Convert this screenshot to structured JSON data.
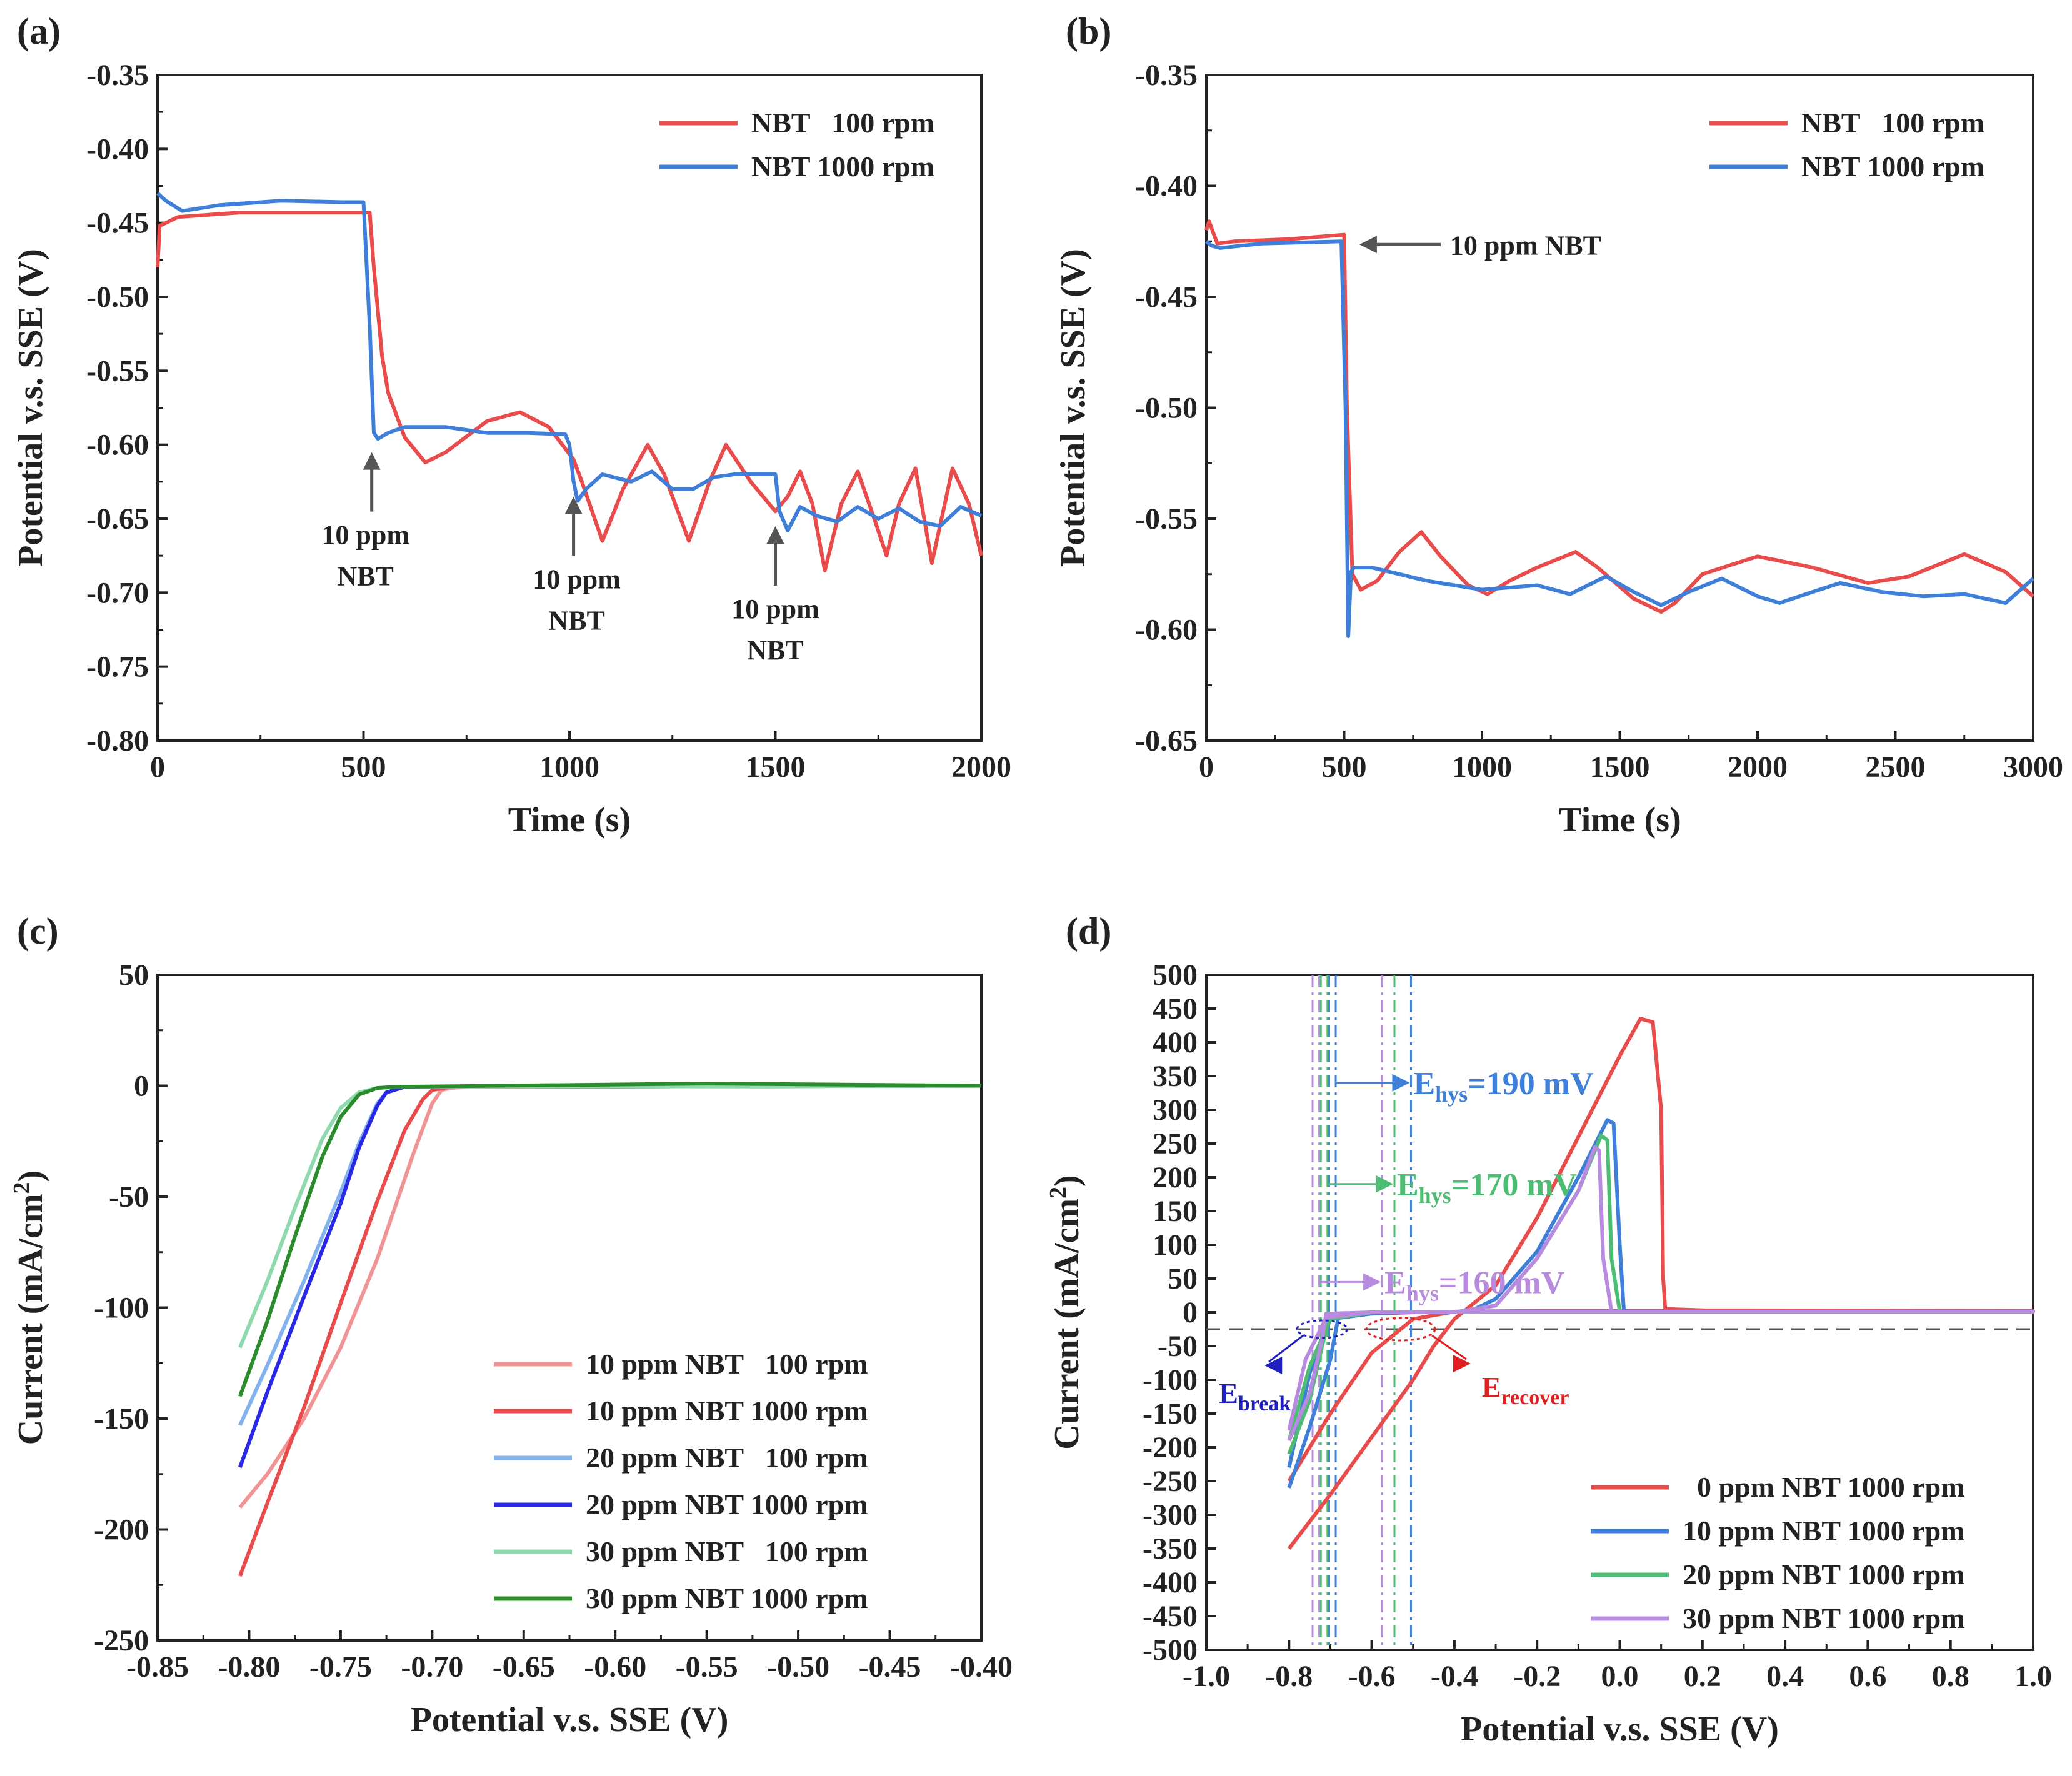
{
  "colors": {
    "red": "#ea4b4b",
    "blue": "#3e7fd9",
    "lightred": "#f29494",
    "darkblue": "#2828e6",
    "lightblue": "#83b3ee",
    "lightgreen": "#8fd9ae",
    "darkgreen": "#2a8c2a",
    "green": "#4dbd73",
    "purple": "#b98be0",
    "gray": "#555555",
    "annred": "#e02020",
    "annblue": "#2020c0"
  },
  "chart_data": [
    {
      "panel": "(a)",
      "type": "line",
      "xlabel": "Time (s)",
      "ylabel": "Potential v.s. SSE (V)",
      "xlim": [
        0,
        2000
      ],
      "ylim": [
        -0.8,
        -0.35
      ],
      "xticks": [
        0,
        500,
        1000,
        1500,
        2000
      ],
      "xtick_labels": [
        "0",
        "500",
        "1000",
        "1500",
        "2000"
      ],
      "yticks": [
        -0.35,
        -0.4,
        -0.45,
        -0.5,
        -0.55,
        -0.6,
        -0.65,
        -0.7,
        -0.75,
        -0.8
      ],
      "ytick_labels": [
        "-0.35",
        "-0.40",
        "-0.45",
        "-0.50",
        "-0.55",
        "-0.60",
        "-0.65",
        "-0.70",
        "-0.75",
        "-0.80"
      ],
      "series": [
        {
          "name": "NBT   100 rpm",
          "color": "red",
          "x": [
            0,
            5,
            50,
            200,
            400,
            515,
            525,
            545,
            560,
            600,
            650,
            700,
            800,
            880,
            950,
            1010,
            1030,
            1080,
            1130,
            1190,
            1230,
            1290,
            1340,
            1380,
            1440,
            1500,
            1530,
            1560,
            1590,
            1620,
            1660,
            1700,
            1740,
            1770,
            1800,
            1840,
            1880,
            1930,
            1970,
            2000
          ],
          "y": [
            -0.48,
            -0.452,
            -0.446,
            -0.443,
            -0.443,
            -0.443,
            -0.48,
            -0.54,
            -0.565,
            -0.595,
            -0.612,
            -0.605,
            -0.584,
            -0.578,
            -0.588,
            -0.61,
            -0.625,
            -0.665,
            -0.63,
            -0.6,
            -0.62,
            -0.665,
            -0.625,
            -0.6,
            -0.625,
            -0.645,
            -0.635,
            -0.618,
            -0.64,
            -0.685,
            -0.64,
            -0.618,
            -0.65,
            -0.675,
            -0.64,
            -0.616,
            -0.68,
            -0.616,
            -0.64,
            -0.675
          ]
        },
        {
          "name": "NBT 1000 rpm",
          "color": "blue",
          "x": [
            0,
            20,
            60,
            150,
            300,
            450,
            500,
            515,
            525,
            535,
            560,
            600,
            700,
            800,
            900,
            990,
            1000,
            1010,
            1020,
            1040,
            1080,
            1150,
            1200,
            1250,
            1300,
            1350,
            1400,
            1450,
            1500,
            1510,
            1530,
            1560,
            1600,
            1650,
            1700,
            1750,
            1800,
            1850,
            1900,
            1950,
            2000
          ],
          "y": [
            -0.43,
            -0.435,
            -0.442,
            -0.438,
            -0.435,
            -0.436,
            -0.436,
            -0.52,
            -0.592,
            -0.596,
            -0.592,
            -0.588,
            -0.588,
            -0.592,
            -0.592,
            -0.593,
            -0.6,
            -0.625,
            -0.638,
            -0.63,
            -0.62,
            -0.625,
            -0.618,
            -0.63,
            -0.63,
            -0.622,
            -0.62,
            -0.62,
            -0.62,
            -0.645,
            -0.658,
            -0.642,
            -0.648,
            -0.652,
            -0.642,
            -0.65,
            -0.643,
            -0.652,
            -0.655,
            -0.642,
            -0.648
          ]
        }
      ],
      "legend": [
        "NBT   100 rpm",
        "NBT 1000 rpm"
      ],
      "annotations": [
        {
          "text1": "10 ppm",
          "text2": "NBT",
          "x": 520
        },
        {
          "text1": "10 ppm",
          "text2": "NBT",
          "x": 1010
        },
        {
          "text1": "10 ppm",
          "text2": "NBT",
          "x": 1500
        }
      ]
    },
    {
      "panel": "(b)",
      "type": "line",
      "xlabel": "Time (s)",
      "ylabel": "Potential v.s. SSE (V)",
      "xlim": [
        0,
        3000
      ],
      "ylim": [
        -0.65,
        -0.35
      ],
      "xticks": [
        0,
        500,
        1000,
        1500,
        2000,
        2500,
        3000
      ],
      "xtick_labels": [
        "0",
        "500",
        "1000",
        "1500",
        "2000",
        "2500",
        "3000"
      ],
      "yticks": [
        -0.35,
        -0.4,
        -0.45,
        -0.5,
        -0.55,
        -0.6,
        -0.65
      ],
      "ytick_labels": [
        "-0.35",
        "-0.40",
        "-0.45",
        "-0.50",
        "-0.55",
        "-0.60",
        "-0.65"
      ],
      "series": [
        {
          "name": "NBT   100 rpm",
          "color": "red",
          "x": [
            0,
            10,
            40,
            100,
            300,
            500,
            510,
            530,
            560,
            620,
            700,
            780,
            850,
            950,
            1020,
            1100,
            1200,
            1340,
            1420,
            1550,
            1650,
            1700,
            1800,
            2000,
            2200,
            2400,
            2550,
            2750,
            2900,
            3000
          ],
          "y": [
            -0.42,
            -0.416,
            -0.426,
            -0.425,
            -0.424,
            -0.422,
            -0.5,
            -0.575,
            -0.582,
            -0.578,
            -0.565,
            -0.556,
            -0.567,
            -0.58,
            -0.584,
            -0.578,
            -0.572,
            -0.565,
            -0.572,
            -0.586,
            -0.592,
            -0.588,
            -0.575,
            -0.567,
            -0.572,
            -0.579,
            -0.576,
            -0.566,
            -0.574,
            -0.585
          ]
        },
        {
          "name": "NBT 1000 rpm",
          "color": "blue",
          "x": [
            0,
            20,
            50,
            200,
            490,
            505,
            515,
            525,
            535,
            600,
            700,
            800,
            1000,
            1200,
            1320,
            1450,
            1550,
            1650,
            1750,
            1870,
            2000,
            2080,
            2200,
            2300,
            2450,
            2600,
            2750,
            2900,
            3000
          ],
          "y": [
            -0.425,
            -0.427,
            -0.428,
            -0.426,
            -0.425,
            -0.5,
            -0.603,
            -0.574,
            -0.572,
            -0.572,
            -0.575,
            -0.578,
            -0.582,
            -0.58,
            -0.584,
            -0.576,
            -0.583,
            -0.589,
            -0.583,
            -0.577,
            -0.585,
            -0.588,
            -0.583,
            -0.579,
            -0.583,
            -0.585,
            -0.584,
            -0.588,
            -0.577
          ]
        }
      ],
      "legend": [
        "NBT   100 rpm",
        "NBT 1000 rpm"
      ],
      "annotations": [
        {
          "text": "10 ppm NBT",
          "x": 510,
          "y": -0.425
        }
      ]
    },
    {
      "panel": "(c)",
      "type": "line",
      "xlabel": "Potential v.s. SSE (V)",
      "ylabel": "Current (mA/cm²)",
      "ylabel_main": "Current (mA/cm",
      "ylabel_sup": "2",
      "ylabel_end": ")",
      "xlim": [
        -0.85,
        -0.4
      ],
      "ylim": [
        -250,
        50
      ],
      "xticks": [
        -0.85,
        -0.8,
        -0.75,
        -0.7,
        -0.65,
        -0.6,
        -0.55,
        -0.5,
        -0.45,
        -0.4
      ],
      "xtick_labels": [
        "-0.85",
        "-0.80",
        "-0.75",
        "-0.70",
        "-0.65",
        "-0.60",
        "-0.55",
        "-0.50",
        "-0.45",
        "-0.40"
      ],
      "yticks": [
        50,
        0,
        -50,
        -100,
        -150,
        -200,
        -250
      ],
      "ytick_labels": [
        "50",
        "0",
        "-50",
        "-100",
        "-150",
        "-200",
        "-250"
      ],
      "series": [
        {
          "name": "10 ppm NBT   100 rpm",
          "color": "lightred",
          "x": [
            -0.805,
            -0.79,
            -0.77,
            -0.75,
            -0.73,
            -0.71,
            -0.7,
            -0.695,
            -0.69,
            -0.68,
            -0.4
          ],
          "y": [
            -190,
            -175,
            -150,
            -118,
            -78,
            -30,
            -8,
            -2,
            -1,
            -0.5,
            0
          ]
        },
        {
          "name": "10 ppm NBT 1000 rpm",
          "color": "red",
          "x": [
            -0.805,
            -0.79,
            -0.77,
            -0.75,
            -0.73,
            -0.715,
            -0.705,
            -0.7,
            -0.69,
            -0.4
          ],
          "y": [
            -221,
            -188,
            -145,
            -98,
            -52,
            -20,
            -6,
            -2,
            -0.5,
            0
          ]
        },
        {
          "name": "20 ppm NBT   100 rpm",
          "color": "lightblue",
          "x": [
            -0.805,
            -0.79,
            -0.77,
            -0.75,
            -0.74,
            -0.73,
            -0.725,
            -0.715,
            -0.4
          ],
          "y": [
            -153,
            -126,
            -88,
            -48,
            -26,
            -8,
            -3,
            -0.5,
            0
          ]
        },
        {
          "name": "20 ppm NBT 1000 rpm",
          "color": "darkblue",
          "x": [
            -0.805,
            -0.79,
            -0.77,
            -0.75,
            -0.74,
            -0.73,
            -0.725,
            -0.715,
            -0.4
          ],
          "y": [
            -172,
            -138,
            -95,
            -53,
            -28,
            -9,
            -3,
            -0.5,
            0
          ]
        },
        {
          "name": "30 ppm NBT   100 rpm",
          "color": "lightgreen",
          "x": [
            -0.805,
            -0.79,
            -0.775,
            -0.76,
            -0.75,
            -0.74,
            -0.73,
            -0.72,
            -0.4
          ],
          "y": [
            -118,
            -88,
            -55,
            -24,
            -10,
            -3,
            -1,
            -0.5,
            0
          ]
        },
        {
          "name": "30 ppm NBT 1000 rpm",
          "color": "darkgreen",
          "x": [
            -0.805,
            -0.79,
            -0.775,
            -0.76,
            -0.75,
            -0.74,
            -0.73,
            -0.72,
            -0.55,
            -0.4
          ],
          "y": [
            -140,
            -106,
            -68,
            -32,
            -14,
            -4,
            -1,
            -0.5,
            1,
            0
          ]
        }
      ],
      "legend": [
        "10 ppm NBT   100 rpm",
        "10 ppm NBT 1000 rpm",
        "20 ppm NBT   100 rpm",
        "20 ppm NBT 1000 rpm",
        "30 ppm NBT   100 rpm",
        "30 ppm NBT 1000 rpm"
      ]
    },
    {
      "panel": "(d)",
      "type": "line",
      "xlabel": "Potential v.s. SSE (V)",
      "ylabel": "Current (mA/cm²)",
      "ylabel_main": "Current (mA/cm",
      "ylabel_sup": "2",
      "ylabel_end": ")",
      "xlim": [
        -1.0,
        1.0
      ],
      "ylim": [
        -500,
        500
      ],
      "xticks": [
        -1.0,
        -0.8,
        -0.6,
        -0.4,
        -0.2,
        0,
        0.2,
        0.4,
        0.6,
        0.8,
        1.0
      ],
      "xtick_labels": [
        "-1.0",
        "-0.8",
        "-0.6",
        "-0.4",
        "-0.2",
        "0.0",
        "0.2",
        "0.4",
        "0.6",
        "0.8",
        "1.0"
      ],
      "yticks": [
        500,
        450,
        400,
        350,
        300,
        250,
        200,
        150,
        100,
        50,
        0,
        -50,
        -100,
        -150,
        -200,
        -250,
        -300,
        -350,
        -400,
        -450,
        -500
      ],
      "ytick_labels": [
        "500",
        "450",
        "400",
        "350",
        "300",
        "250",
        "200",
        "150",
        "100",
        "50",
        "0",
        "-50",
        "-100",
        "-150",
        "-200",
        "-250",
        "-300",
        "-350",
        "-400",
        "-450",
        "-500"
      ],
      "series": [
        {
          "name": "  0 ppm NBT 1000 rpm",
          "color": "red",
          "x": [
            -0.8,
            -0.7,
            -0.6,
            -0.5,
            -0.45,
            -0.4,
            -0.3,
            -0.2,
            -0.1,
            0.0,
            0.05,
            0.08,
            0.1,
            0.105,
            0.11,
            0.2,
            1.0,
            0.2,
            0.0,
            -0.2,
            -0.4,
            -0.5,
            -0.6,
            -0.7,
            -0.8
          ],
          "y": [
            -350,
            -270,
            -185,
            -100,
            -50,
            -10,
            40,
            140,
            260,
            380,
            435,
            430,
            300,
            50,
            5,
            3,
            2,
            2,
            2,
            2,
            1,
            -10,
            -60,
            -150,
            -250
          ]
        },
        {
          "name": "10 ppm NBT 1000 rpm",
          "color": "blue",
          "x": [
            -0.8,
            -0.75,
            -0.7,
            -0.68,
            -0.6,
            -0.4,
            -0.35,
            -0.3,
            -0.2,
            -0.1,
            -0.03,
            -0.015,
            0.0,
            0.01,
            0.1,
            1.0,
            0.0,
            -0.3,
            -0.5,
            -0.6,
            -0.7,
            -0.75,
            -0.8
          ],
          "y": [
            -260,
            -170,
            -70,
            -5,
            0,
            0,
            5,
            20,
            90,
            200,
            285,
            280,
            100,
            2,
            1,
            1,
            1,
            1,
            0,
            -2,
            -10,
            -90,
            -230
          ]
        },
        {
          "name": "20 ppm NBT 1000 rpm",
          "color": "green",
          "x": [
            -0.8,
            -0.75,
            -0.72,
            -0.7,
            -0.6,
            -0.4,
            -0.3,
            -0.2,
            -0.1,
            -0.045,
            -0.03,
            -0.02,
            0.0,
            1.0,
            -0.3,
            -0.6,
            -0.7,
            -0.75,
            -0.8
          ],
          "y": [
            -210,
            -130,
            -50,
            -3,
            0,
            0,
            10,
            80,
            180,
            262,
            255,
            80,
            1,
            1,
            1,
            0,
            -10,
            -80,
            -190
          ]
        },
        {
          "name": "30 ppm NBT 1000 rpm",
          "color": "purple",
          "x": [
            -0.8,
            -0.75,
            -0.72,
            -0.71,
            -0.6,
            -0.4,
            -0.3,
            -0.2,
            -0.1,
            -0.06,
            -0.05,
            -0.04,
            -0.02,
            1.0,
            -0.3,
            -0.6,
            -0.71,
            -0.76,
            -0.8
          ],
          "y": [
            -190,
            -120,
            -40,
            -2,
            0,
            0,
            10,
            80,
            180,
            245,
            240,
            80,
            1,
            1,
            1,
            0,
            -8,
            -70,
            -175
          ]
        }
      ],
      "legend": [
        "  0 ppm NBT 1000 rpm",
        "10 ppm NBT 1000 rpm",
        "20 ppm NBT 1000 rpm",
        "30 ppm NBT 1000 rpm"
      ],
      "hysteresis": [
        {
          "label": "E",
          "sub": "hys",
          "value": "=190 mV",
          "color": "blue",
          "x1": -0.695,
          "x2": -0.505,
          "y": 340
        },
        {
          "label": "E",
          "sub": "hys",
          "value": "=170 mV",
          "color": "green",
          "x1": -0.715,
          "x2": -0.545,
          "y": 190
        },
        {
          "label": "E",
          "sub": "hys",
          "value": "=160 mV",
          "color": "purple",
          "x1": -0.735,
          "x2": -0.575,
          "y": 45
        }
      ],
      "reference_line_y": -25,
      "ebreak": {
        "main": "E",
        "sub": "break"
      },
      "erecover": {
        "main": "E",
        "sub": "recover"
      }
    }
  ]
}
